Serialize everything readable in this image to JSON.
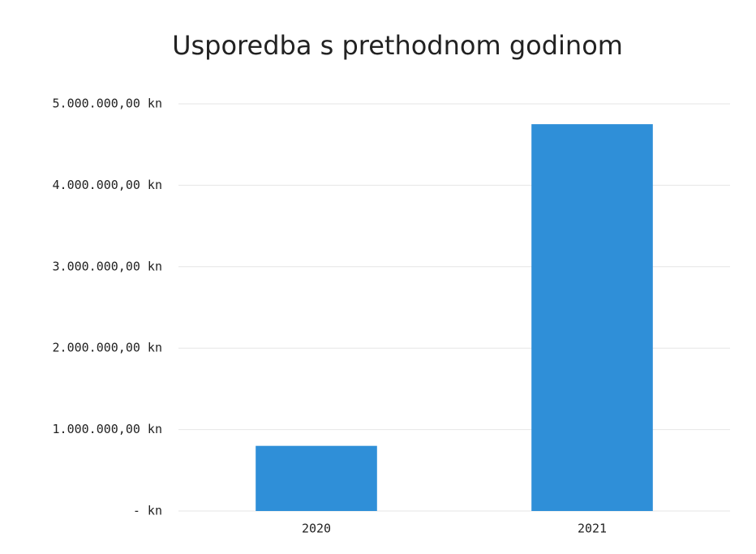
{
  "chart_data": {
    "type": "bar",
    "title": "Usporedba s prethodnom godinom",
    "categories": [
      "2020",
      "2021"
    ],
    "values": [
      800000,
      4750000
    ],
    "color": "#2f8fd8",
    "ylim": [
      0,
      5000000
    ],
    "yticks": [
      {
        "value": 0,
        "label": "-   kn"
      },
      {
        "value": 1000000,
        "label": "1.000.000,00 kn"
      },
      {
        "value": 2000000,
        "label": "2.000.000,00 kn"
      },
      {
        "value": 3000000,
        "label": "3.000.000,00 kn"
      },
      {
        "value": 4000000,
        "label": "4.000.000,00 kn"
      },
      {
        "value": 5000000,
        "label": "5.000.000,00 kn"
      }
    ],
    "grid": true
  }
}
